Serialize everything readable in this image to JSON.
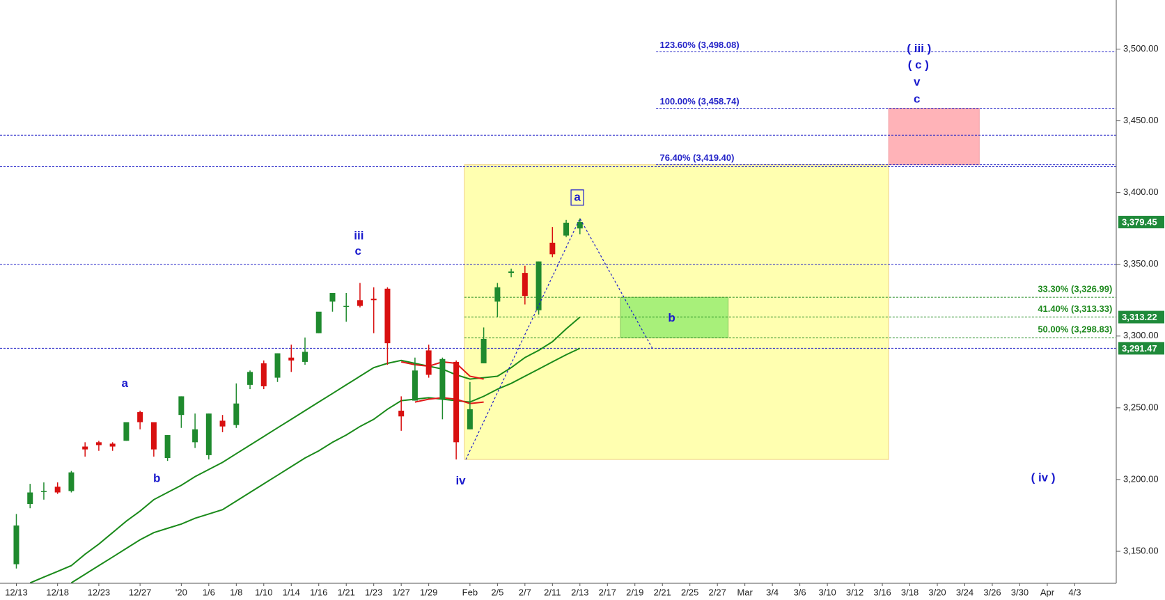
{
  "chart_data": {
    "type": "candlestick",
    "categories": [
      "12/13",
      null,
      null,
      "12/18",
      null,
      null,
      "12/23",
      null,
      null,
      "12/27",
      null,
      null,
      "'20",
      null,
      "1/6",
      null,
      "1/8",
      null,
      "1/10",
      null,
      "1/14",
      null,
      "1/16",
      null,
      "1/21",
      null,
      "1/23",
      null,
      "1/27",
      null,
      "1/29",
      null,
      null,
      "Feb",
      null,
      "2/5",
      null,
      "2/7",
      null,
      "2/11",
      null,
      "2/13",
      null,
      "2/17",
      null,
      "2/19",
      null,
      "2/21",
      null,
      "2/25",
      null,
      "2/27",
      null,
      "Mar",
      null,
      "3/4",
      null,
      "3/6",
      null,
      "3/10",
      null,
      "3/12",
      null,
      "3/16",
      null,
      "3/18",
      null,
      "3/20",
      null,
      "3/24",
      null,
      "3/26",
      null,
      "3/30",
      null,
      "Apr",
      null,
      "4/3"
    ],
    "open": [
      3141,
      3183,
      3192,
      3195,
      3192,
      3223,
      3226,
      3225,
      3227,
      3247,
      3240,
      3215,
      3245,
      3226,
      3217,
      3241,
      3238,
      3266,
      3281,
      3271,
      3285,
      3282,
      3302,
      3324,
      3321,
      3325,
      3326,
      3333,
      3248,
      3255,
      3290,
      3256,
      3282,
      3235,
      3281,
      3324,
      3344,
      3344,
      3318,
      3365,
      3370,
      3375,
      null,
      null,
      null,
      null,
      null,
      null,
      null,
      null,
      null,
      null,
      null,
      null,
      null,
      null,
      null,
      null,
      null,
      null,
      null,
      null,
      null,
      null,
      null,
      null,
      null,
      null,
      null,
      null,
      null,
      null,
      null,
      null,
      null,
      null,
      null,
      null
    ],
    "high": [
      3176,
      3197,
      3198,
      3198,
      3206,
      3226,
      3227,
      3226,
      3240,
      3248,
      3240,
      3231,
      3258,
      3246,
      3246,
      3245,
      3267,
      3276,
      3283,
      3288,
      3294,
      3299,
      3316,
      3330,
      3330,
      3337,
      3334,
      3334,
      3258,
      3285,
      3294,
      3285,
      3283,
      3268,
      3306,
      3337,
      3347,
      3349,
      3352,
      3376,
      3381,
      3382,
      null,
      null,
      null,
      null,
      null,
      null,
      null,
      null,
      null,
      null,
      null,
      null,
      null,
      null,
      null,
      null,
      null,
      null,
      null,
      null,
      null,
      null,
      null,
      null,
      null,
      null,
      null,
      null,
      null,
      null,
      null,
      null,
      null,
      null,
      null,
      null
    ],
    "low": [
      3138,
      3180,
      3186,
      3190,
      3191,
      3216,
      3220,
      3220,
      3227,
      3235,
      3216,
      3213,
      3236,
      3222,
      3214,
      3233,
      3236,
      3263,
      3263,
      3268,
      3275,
      3280,
      3302,
      3317,
      3310,
      3320,
      3302,
      3280,
      3234,
      3255,
      3271,
      3242,
      3214,
      3235,
      3281,
      3313,
      3341,
      3322,
      3315,
      3355,
      3369,
      3371,
      null,
      null,
      null,
      null,
      null,
      null,
      null,
      null,
      null,
      null,
      null,
      null,
      null,
      null,
      null,
      null,
      null,
      null,
      null,
      null,
      null,
      null,
      null,
      null,
      null,
      null,
      null,
      null,
      null,
      null,
      null,
      null,
      null,
      null,
      null,
      null
    ],
    "close": [
      3168,
      3191,
      3192,
      3191,
      3205,
      3221,
      3224,
      3223,
      3240,
      3240,
      3221,
      3231,
      3258,
      3235,
      3246,
      3237,
      3253,
      3275,
      3265,
      3288,
      3283,
      3289,
      3317,
      3330,
      3321,
      3321,
      3325,
      3295,
      3244,
      3276,
      3273,
      3284,
      3226,
      3249,
      3298,
      3334,
      3345,
      3328,
      3352,
      3357,
      3379,
      3379.45,
      null,
      null,
      null,
      null,
      null,
      null,
      null,
      null,
      null,
      null,
      null,
      null,
      null,
      null,
      null,
      null,
      null,
      null,
      null,
      null,
      null,
      null,
      null,
      null,
      null,
      null,
      null,
      null,
      null,
      null,
      null,
      null,
      null,
      null,
      null,
      null
    ],
    "up_color": "#1f8a2e",
    "down_color": "#d81010",
    "lines": [
      {
        "color": "#1a8a1a",
        "values": [
          null,
          3128,
          3132,
          3136,
          3140,
          3148,
          3155,
          3163,
          3171,
          3178,
          3186,
          3191,
          3196,
          3202,
          3207,
          3212,
          3218,
          3224,
          3230,
          3236,
          3242,
          3248,
          3254,
          3260,
          3266,
          3272,
          3278,
          3281,
          3283,
          3281,
          3279,
          3277,
          3273,
          3270,
          3271,
          3272,
          3278,
          3285,
          3290,
          3296,
          3305,
          3313.22,
          null,
          null,
          null,
          null,
          null,
          null,
          null,
          null,
          null,
          null,
          null,
          null,
          null,
          null,
          null,
          null,
          null,
          null,
          null,
          null,
          null,
          null,
          null,
          null,
          null,
          null,
          null,
          null,
          null,
          null,
          null,
          null,
          null,
          null,
          null,
          null
        ]
      },
      {
        "color": "#1a8a1a",
        "values": [
          null,
          null,
          null,
          null,
          3128,
          3134,
          3140,
          3146,
          3152,
          3158,
          3163,
          3166,
          3169,
          3173,
          3176,
          3179,
          3185,
          3191,
          3197,
          3203,
          3209,
          3215,
          3220,
          3226,
          3231,
          3237,
          3242,
          3249,
          3255,
          3256,
          3257,
          3256,
          3255,
          3254,
          3258,
          3263,
          3267,
          3272,
          3277,
          3282,
          3287,
          3291.47,
          null,
          null,
          null,
          null,
          null,
          null,
          null,
          null,
          null,
          null,
          null,
          null,
          null,
          null,
          null,
          null,
          null,
          null,
          null,
          null,
          null,
          null,
          null,
          null,
          null,
          null,
          null,
          null,
          null,
          null,
          null,
          null,
          null,
          null,
          null,
          null
        ]
      },
      {
        "color": "#e01818",
        "values": [
          null,
          null,
          null,
          null,
          null,
          null,
          null,
          null,
          null,
          null,
          null,
          null,
          null,
          null,
          null,
          null,
          null,
          null,
          null,
          null,
          null,
          null,
          null,
          null,
          null,
          null,
          null,
          null,
          3282,
          3280,
          3279,
          3282,
          3281,
          3272,
          3270,
          null,
          null,
          null,
          null,
          null,
          null,
          null,
          null,
          null,
          null,
          null,
          null,
          null,
          null,
          null,
          null,
          null,
          null,
          null,
          null,
          null,
          null,
          null,
          null,
          null,
          null,
          null,
          null,
          null,
          null,
          null,
          null,
          null,
          null,
          null,
          null,
          null,
          null,
          null,
          null,
          null,
          null,
          null
        ]
      },
      {
        "color": "#e01818",
        "values": [
          null,
          null,
          null,
          null,
          null,
          null,
          null,
          null,
          null,
          null,
          null,
          null,
          null,
          null,
          null,
          null,
          null,
          null,
          null,
          null,
          null,
          null,
          null,
          null,
          null,
          null,
          null,
          null,
          null,
          3254,
          3256,
          3257,
          3256,
          3253,
          3254,
          null,
          null,
          null,
          null,
          null,
          null,
          null,
          null,
          null,
          null,
          null,
          null,
          null,
          null,
          null,
          null,
          null,
          null,
          null,
          null,
          null,
          null,
          null,
          null,
          null,
          null,
          null,
          null,
          null,
          null,
          null,
          null,
          null,
          null,
          null,
          null,
          null,
          null,
          null,
          null,
          null,
          null,
          null
        ]
      }
    ],
    "ylim": [
      3127.7,
      3534.2
    ],
    "yticks": [
      {
        "value": 3150,
        "label": "3,150.00"
      },
      {
        "value": 3200,
        "label": "3,200.00"
      },
      {
        "value": 3250,
        "label": "3,250.00"
      },
      {
        "value": 3300,
        "label": "3,300.00"
      },
      {
        "value": 3350,
        "label": "3,350.00"
      },
      {
        "value": 3400,
        "label": "3,400.00"
      },
      {
        "value": 3450,
        "label": "3,450.00"
      },
      {
        "value": 3500,
        "label": "3,500.00"
      }
    ],
    "price_labels": [
      {
        "value": 3379.45,
        "label": "3,379.45"
      },
      {
        "value": 3313.22,
        "label": "3,313.22"
      },
      {
        "value": 3291.47,
        "label": "3,291.47"
      }
    ],
    "price_label_color": "#1f8a3a",
    "hlines": [
      3440,
      3418,
      3350,
      3291.47
    ],
    "hline_color": "#2424c8",
    "fib_blue": [
      {
        "value": 3498.08,
        "label": "123.60% (3,498.08)"
      },
      {
        "value": 3458.74,
        "label": "100.00% (3,458.74)"
      },
      {
        "value": 3419.4,
        "label": "76.40% (3,419.40)"
      }
    ],
    "fib_green": [
      {
        "value": 3326.99,
        "label": "33.30% (3,326.99)"
      },
      {
        "value": 3313.33,
        "label": "41.40% (3,313.33)"
      },
      {
        "value": 3298.83,
        "label": "50.00% (3,298.83)"
      }
    ],
    "fib_green_color": "#1f8a1f",
    "zones": [
      {
        "from": 3214,
        "to": 3419.4,
        "color": "#ffffb0"
      },
      {
        "from": 3419.4,
        "to": 3458.74,
        "color": "#ffb3b8"
      },
      {
        "from": 3298.83,
        "to": 3326.99,
        "color": "#a8f07a"
      }
    ],
    "annotations": [
      "a",
      "b",
      "iii",
      "c",
      "iv",
      "a",
      "b",
      "( iii )",
      "( c )",
      "v",
      "c",
      "( iv )"
    ]
  }
}
